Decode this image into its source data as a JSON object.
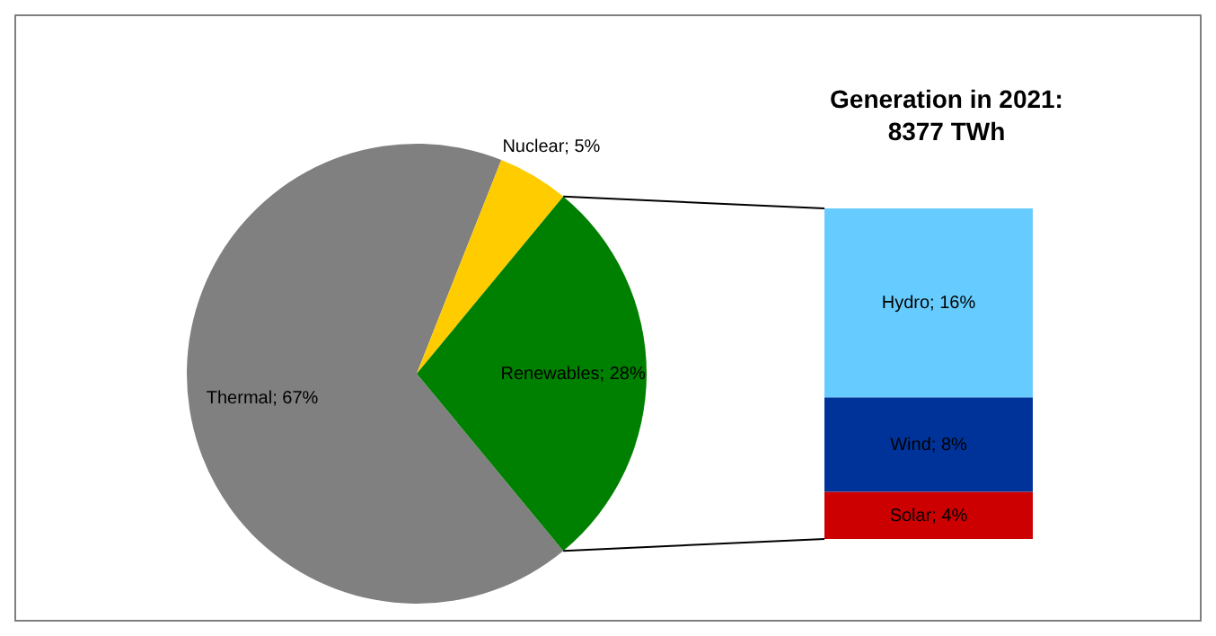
{
  "chart_data": [
    {
      "type": "pie",
      "categories": [
        "Thermal",
        "Nuclear",
        "Renewables"
      ],
      "values": [
        67,
        5,
        28
      ],
      "colors": [
        "#808080",
        "#ffcc00",
        "#008000"
      ],
      "value_labels": [
        "; 67%",
        "; 5%",
        "; 28%"
      ]
    },
    {
      "type": "bar",
      "title": "Generation in 2021: 8377 TWh",
      "stacked": true,
      "categories": [
        null
      ],
      "series": [
        {
          "name": "Solar",
          "color": "#cc0000",
          "values": [
            4
          ],
          "value_labels": [
            "; 4%"
          ]
        },
        {
          "name": "Wind",
          "color": "#003399",
          "values": [
            8
          ],
          "value_labels": [
            "; 8%"
          ]
        },
        {
          "name": "Hydro",
          "color": "#66ccff",
          "values": [
            16
          ],
          "value_labels": [
            "; 16%"
          ]
        }
      ]
    }
  ]
}
